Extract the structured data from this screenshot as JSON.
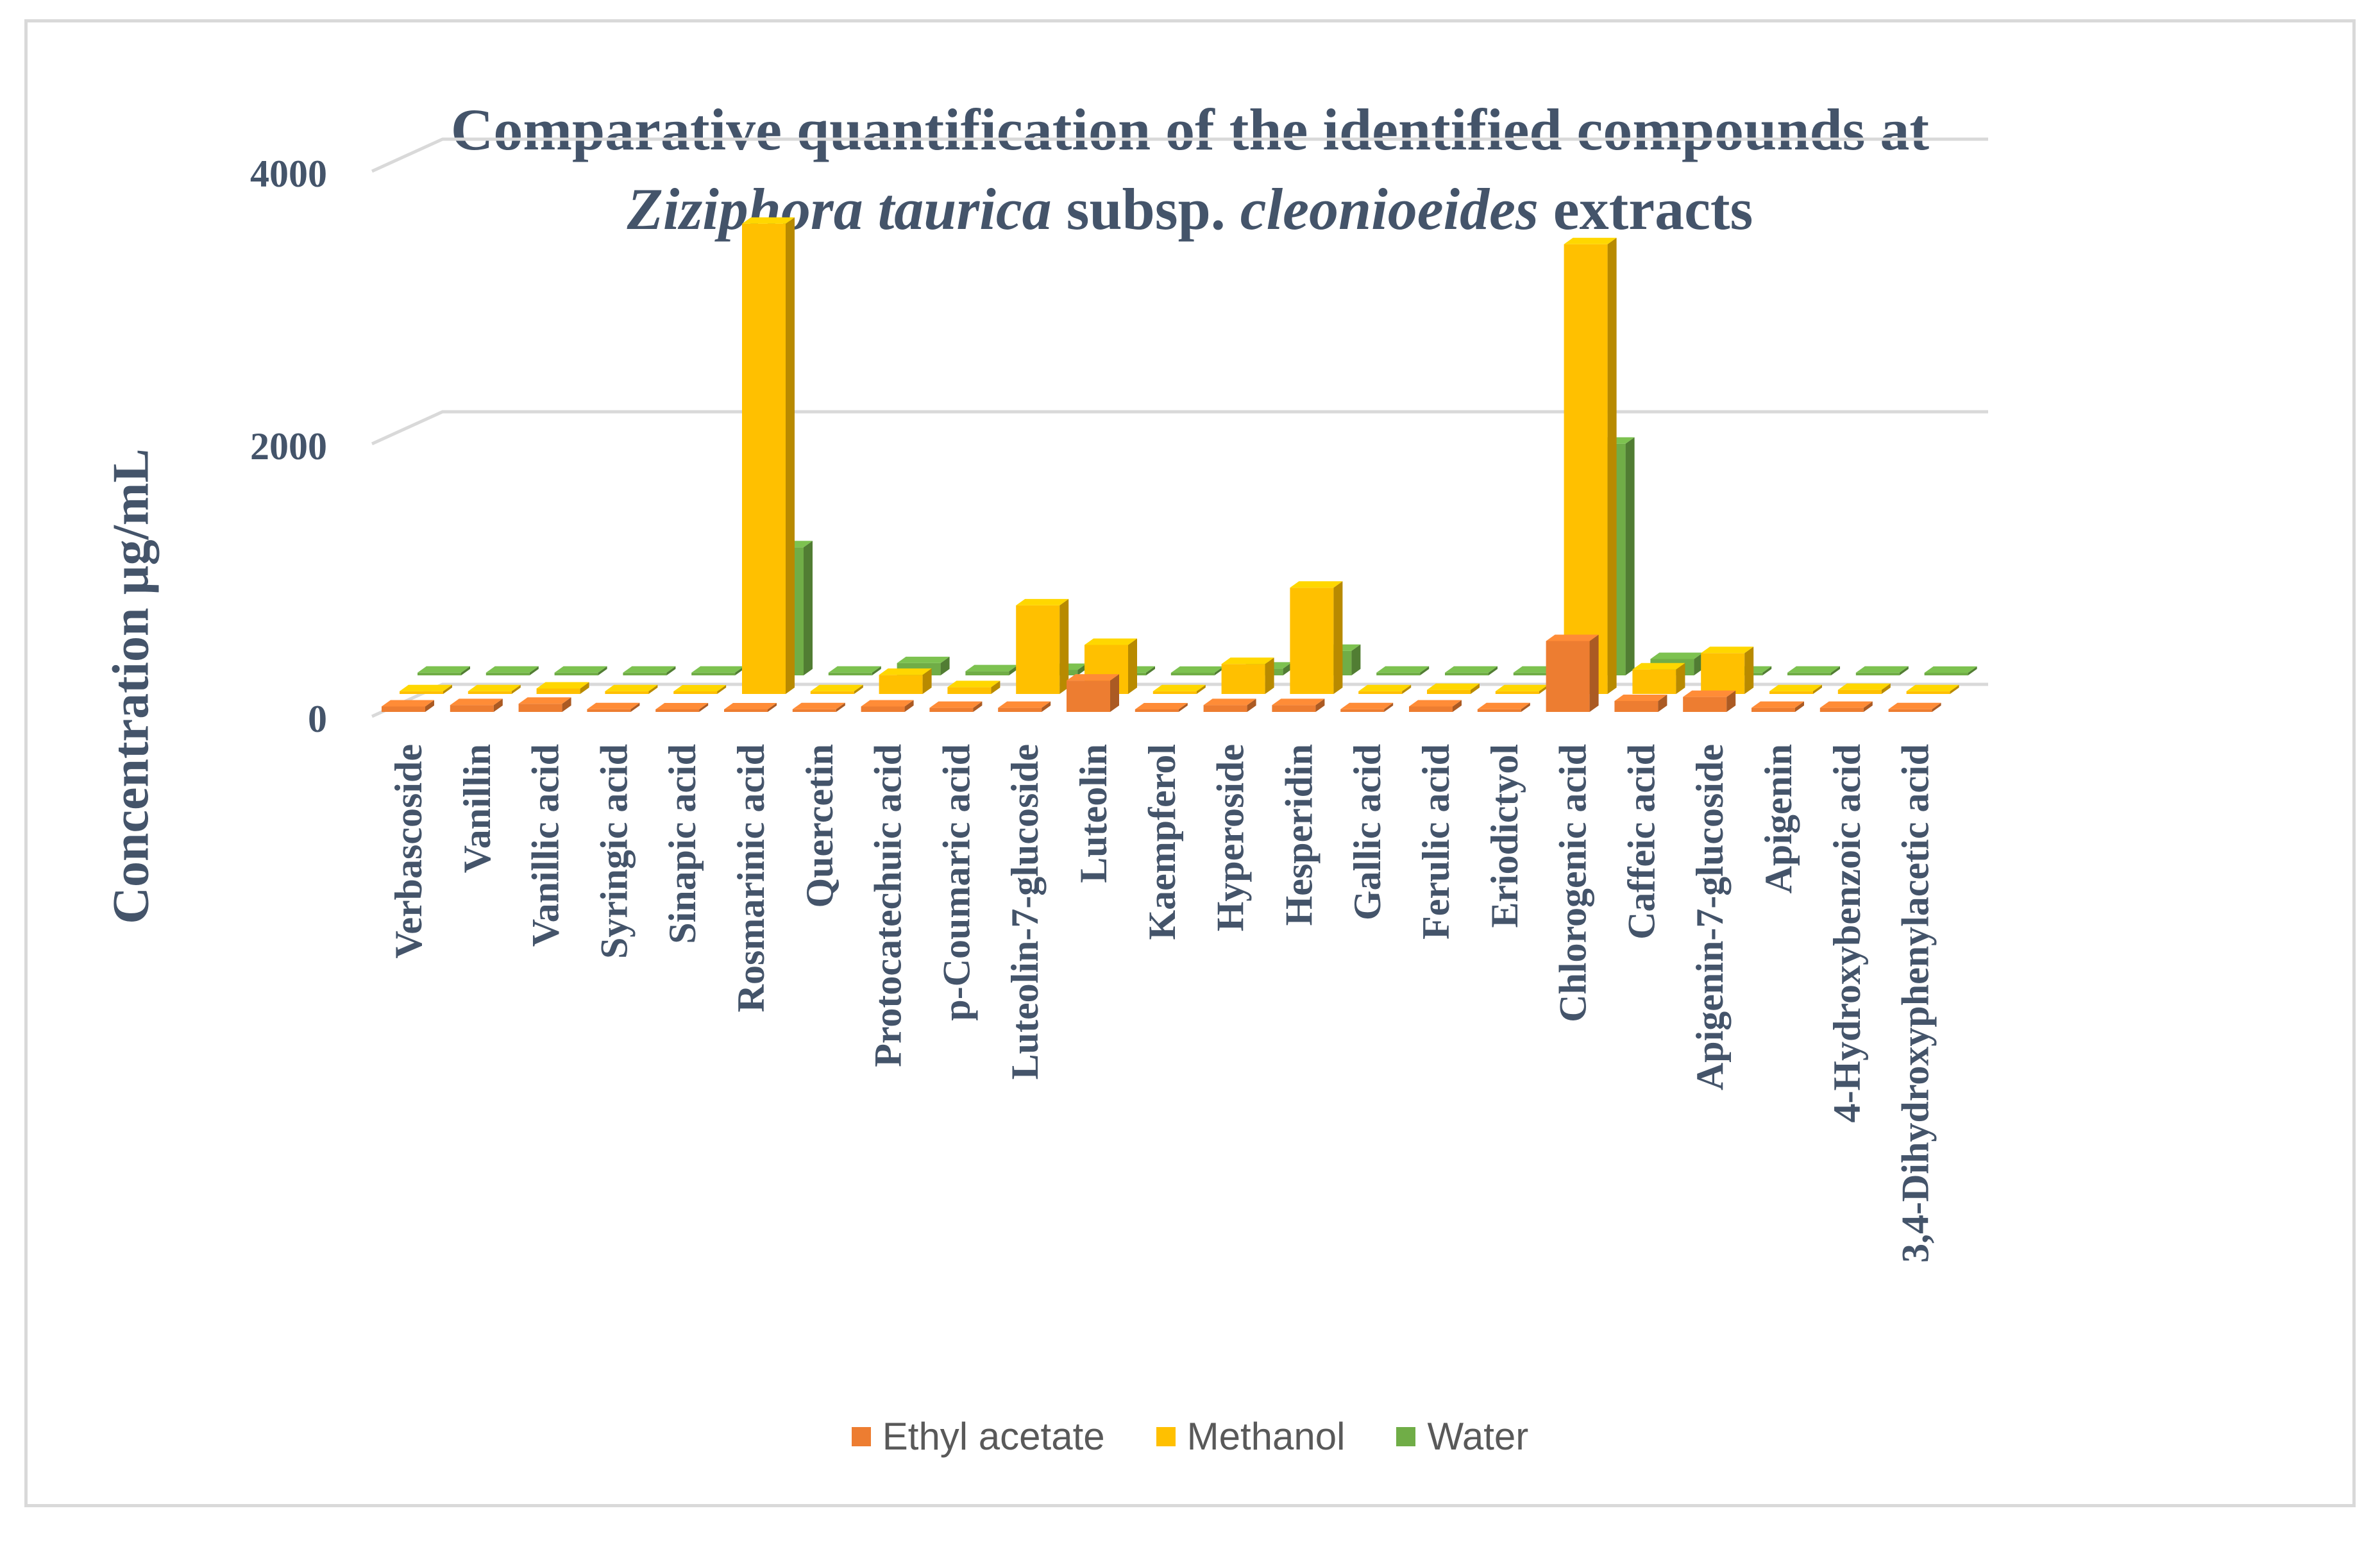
{
  "chart_data": {
    "type": "bar",
    "subtype": "3d-clustered-column",
    "title_line1": "Comparative quantification of the identified compounds at",
    "title_line2": {
      "part1": "Ziziphora taurica",
      "part2": " subsp. ",
      "part3": "cleonioeides",
      "part4": " extracts"
    },
    "ylabel": "Concentration µg/mL",
    "ylim": [
      0,
      4000
    ],
    "yticks": [
      "0",
      "2000",
      "4000"
    ],
    "grid": true,
    "legend_position": "bottom",
    "categories": [
      "Verbascoside",
      "Vanillin",
      "Vanillic acid",
      "Syringic acid",
      "Sinapic acid",
      "Rosmarinic acid",
      "Quercetin",
      "Protocatechuic acid",
      "p-Coumaric acid",
      "Luteolin-7-glucoside",
      "Luteolin",
      "Kaempferol",
      "Hyperoside",
      "Hesperidin",
      "Gallic acid",
      "Ferulic acid",
      "Eriodictyol",
      "Chlorogenic acid",
      "Caffeic acid",
      "Apigenin-7-glucoside",
      "Apigenin",
      "4-Hydroxybenzoic acid",
      "3,4-Dihydroxyphenylacetic acid"
    ],
    "series": [
      {
        "name": "Ethyl acetate",
        "color": "#ed7d31",
        "values": [
          40,
          50,
          60,
          20,
          10,
          15,
          20,
          40,
          30,
          30,
          230,
          10,
          50,
          50,
          20,
          40,
          20,
          520,
          80,
          110,
          30,
          30,
          20
        ]
      },
      {
        "name": "Methanol",
        "color": "#ffc000",
        "values": [
          20,
          20,
          40,
          20,
          15,
          3450,
          20,
          140,
          50,
          650,
          360,
          20,
          220,
          780,
          20,
          30,
          20,
          3300,
          180,
          300,
          20,
          30,
          20
        ]
      },
      {
        "name": "Water",
        "color": "#70ad47",
        "values": [
          20,
          20,
          20,
          20,
          20,
          940,
          20,
          90,
          30,
          40,
          20,
          10,
          50,
          180,
          20,
          20,
          20,
          1700,
          120,
          20,
          20,
          20,
          10
        ]
      }
    ]
  }
}
